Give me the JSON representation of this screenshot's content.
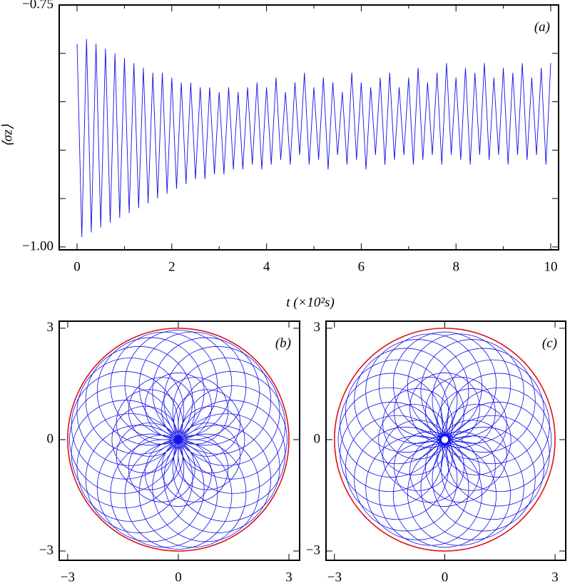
{
  "chart_data": [
    {
      "type": "line",
      "annotation": "(a)",
      "xlabel": "t (×10²s)",
      "ylabel": "⟨σz⟩",
      "color": "#1010e8",
      "x": [
        0,
        0.1,
        0.2,
        0.3,
        0.4,
        0.5,
        0.6,
        0.7,
        0.8,
        0.9,
        1,
        1.1,
        1.2,
        1.3,
        1.4,
        1.5,
        1.6,
        1.7,
        1.8,
        1.9,
        2,
        2.1,
        2.2,
        2.3,
        2.4,
        2.5,
        2.6,
        2.7,
        2.8,
        2.9,
        3,
        3.1,
        3.2,
        3.3,
        3.4,
        3.5,
        3.6,
        3.7,
        3.8,
        3.9,
        4,
        4.1,
        4.2,
        4.3,
        4.4,
        4.5,
        4.6,
        4.7,
        4.8,
        4.9,
        5,
        5.1,
        5.2,
        5.3,
        5.4,
        5.5,
        5.6,
        5.7,
        5.8,
        5.9,
        6,
        6.1,
        6.2,
        6.3,
        6.4,
        6.5,
        6.6,
        6.7,
        6.8,
        6.9,
        7,
        7.1,
        7.2,
        7.3,
        7.4,
        7.5,
        7.6,
        7.7,
        7.8,
        7.9,
        8,
        8.1,
        8.2,
        8.3,
        8.4,
        8.5,
        8.6,
        8.7,
        8.8,
        8.9,
        9,
        9.1,
        9.2,
        9.3,
        9.4,
        9.5,
        9.6,
        9.7,
        9.8,
        9.9,
        10
      ],
      "values": [
        -0.79,
        -0.99,
        -0.785,
        -0.985,
        -0.79,
        -0.98,
        -0.795,
        -0.975,
        -0.8,
        -0.97,
        -0.805,
        -0.965,
        -0.81,
        -0.96,
        -0.815,
        -0.955,
        -0.82,
        -0.95,
        -0.82,
        -0.945,
        -0.825,
        -0.94,
        -0.83,
        -0.935,
        -0.83,
        -0.93,
        -0.835,
        -0.93,
        -0.835,
        -0.925,
        -0.84,
        -0.925,
        -0.835,
        -0.92,
        -0.84,
        -0.92,
        -0.835,
        -0.915,
        -0.83,
        -0.92,
        -0.835,
        -0.915,
        -0.825,
        -0.91,
        -0.84,
        -0.915,
        -0.83,
        -0.905,
        -0.82,
        -0.915,
        -0.835,
        -0.91,
        -0.825,
        -0.92,
        -0.83,
        -0.905,
        -0.84,
        -0.915,
        -0.82,
        -0.91,
        -0.83,
        -0.92,
        -0.835,
        -0.905,
        -0.825,
        -0.915,
        -0.82,
        -0.91,
        -0.835,
        -0.905,
        -0.825,
        -0.915,
        -0.815,
        -0.91,
        -0.83,
        -0.905,
        -0.82,
        -0.915,
        -0.81,
        -0.905,
        -0.825,
        -0.91,
        -0.815,
        -0.915,
        -0.82,
        -0.905,
        -0.81,
        -0.91,
        -0.825,
        -0.905,
        -0.815,
        -0.915,
        -0.82,
        -0.905,
        -0.81,
        -0.91,
        -0.825,
        -0.905,
        -0.815,
        -0.915,
        -0.81
      ],
      "xlim": [
        -0.377,
        10.166
      ],
      "ylim": [
        -1.003,
        -0.75
      ],
      "xticks": [
        0,
        2,
        4,
        6,
        8,
        10
      ],
      "xminor_ticks": [
        1,
        3,
        5,
        7,
        9
      ],
      "yticks": [
        {
          "value": -0.75,
          "label": "−0.75"
        },
        {
          "value": -1,
          "label": "−1.00"
        }
      ],
      "yminor_ticks": [
        -0.8,
        -0.85,
        -0.9,
        -0.95
      ]
    },
    {
      "type": "circles",
      "annotation": "(b)",
      "color": "#1010e8",
      "boundary_radius": 3,
      "boundary_color": "#e01010",
      "cx": [
        1.5,
        1.449,
        1.299,
        1.061,
        0.75,
        0.388,
        0,
        -0.388,
        -0.75,
        -1.061,
        -1.299,
        -1.449,
        -1.5,
        -1.449,
        -1.299,
        -1.061,
        -0.75,
        -0.388,
        0,
        0.388,
        0.75,
        1.061,
        1.299,
        1.449,
        0.9,
        0.779,
        0.45,
        0,
        -0.45,
        -0.779,
        -0.9,
        -0.779,
        -0.45,
        0,
        0.45,
        0.779
      ],
      "cy": [
        0,
        0.388,
        0.75,
        1.061,
        1.299,
        1.449,
        1.5,
        1.449,
        1.299,
        1.061,
        0.75,
        0.388,
        0,
        -0.388,
        -0.75,
        -1.061,
        -1.299,
        -1.449,
        -1.5,
        -1.449,
        -1.299,
        -1.061,
        -0.75,
        -0.388,
        0,
        0.45,
        0.779,
        0.9,
        0.779,
        0.45,
        0,
        -0.45,
        -0.779,
        -0.9,
        -0.779,
        -0.45
      ],
      "r": [
        1.45,
        1.45,
        1.45,
        1.45,
        1.45,
        1.45,
        1.45,
        1.45,
        1.45,
        1.45,
        1.45,
        1.45,
        1.45,
        1.45,
        1.45,
        1.45,
        1.45,
        1.45,
        1.45,
        1.45,
        1.45,
        1.45,
        1.45,
        1.45,
        0.9,
        0.9,
        0.9,
        0.9,
        0.9,
        0.9,
        0.9,
        0.9,
        0.9,
        0.9,
        0.9,
        0.9
      ],
      "xlim": [
        -3.23,
        3.29
      ],
      "ylim": [
        -3.25,
        3.19
      ],
      "xticks": [
        {
          "value": -3,
          "label": "−3"
        },
        0,
        3
      ],
      "yticks": [
        {
          "value": -3,
          "label": "−3"
        },
        0,
        3
      ]
    },
    {
      "type": "circles",
      "annotation": "(c)",
      "color": "#1010e8",
      "boundary_radius": 3,
      "boundary_color": "#e01010",
      "cx": [
        1.5,
        1.449,
        1.299,
        1.061,
        0.75,
        0.388,
        0,
        -0.388,
        -0.75,
        -1.061,
        -1.299,
        -1.449,
        -1.5,
        -1.449,
        -1.299,
        -1.061,
        -0.75,
        -0.388,
        0,
        0.388,
        0.75,
        1.061,
        1.299,
        1.449,
        0.85,
        0.736,
        0.425,
        0,
        -0.425,
        -0.736,
        -0.85,
        -0.736,
        -0.425,
        0,
        0.425,
        0.736
      ],
      "cy": [
        0,
        0.388,
        0.75,
        1.061,
        1.299,
        1.449,
        1.5,
        1.449,
        1.299,
        1.061,
        0.75,
        0.388,
        0,
        -0.388,
        -0.75,
        -1.061,
        -1.299,
        -1.449,
        -1.5,
        -1.449,
        -1.299,
        -1.061,
        -0.75,
        -0.388,
        0,
        0.425,
        0.736,
        0.85,
        0.736,
        0.425,
        0,
        -0.425,
        -0.736,
        -0.85,
        -0.736,
        -0.425
      ],
      "r": [
        1.4,
        1.4,
        1.4,
        1.4,
        1.4,
        1.4,
        1.4,
        1.4,
        1.4,
        1.4,
        1.4,
        1.4,
        1.4,
        1.4,
        1.4,
        1.4,
        1.4,
        1.4,
        1.4,
        1.4,
        1.4,
        1.4,
        1.4,
        1.4,
        0.95,
        0.95,
        0.95,
        0.95,
        0.95,
        0.95,
        0.95,
        0.95,
        0.95,
        0.95,
        0.95,
        0.95
      ],
      "xlim": [
        -3.23,
        3.29
      ],
      "ylim": [
        -3.25,
        3.19
      ],
      "xticks": [
        {
          "value": -3,
          "label": "−3"
        },
        0,
        3
      ],
      "yticks": [
        {
          "value": -3,
          "label": "−3"
        },
        0,
        3
      ]
    }
  ]
}
